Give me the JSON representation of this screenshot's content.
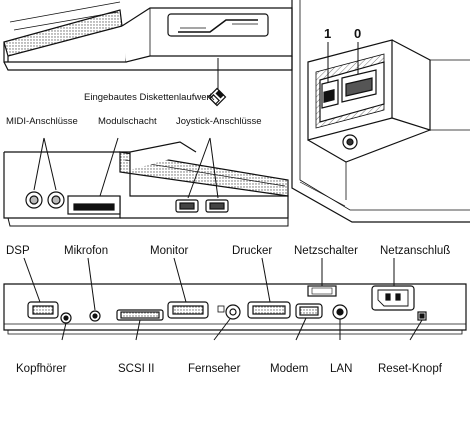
{
  "top_left": {
    "floppy_label": "Eingebautes Diskettenlaufwerk"
  },
  "top_right": {
    "port1_label": "1",
    "port0_label": "0"
  },
  "mid_left": {
    "midi_label": "MIDI-Anschlüsse",
    "module_label": "Modulschacht",
    "joystick_label": "Joystick-Anschlüsse"
  },
  "back_panel": {
    "top_labels": {
      "dsp": "DSP",
      "mikrofon": "Mikrofon",
      "monitor": "Monitor",
      "drucker": "Drucker",
      "netzschalter": "Netzschalter",
      "netzanschluss": "Netzanschluß"
    },
    "bottom_labels": {
      "kopfhoerer": "Kopfhörer",
      "scsi": "SCSI II",
      "fernseher": "Fernseher",
      "modem": "Modem",
      "lan": "LAN",
      "reset": "Reset-Knopf"
    }
  },
  "colors": {
    "ink": "#111111",
    "paper": "#ffffff",
    "shade": "#9a9a9a"
  }
}
